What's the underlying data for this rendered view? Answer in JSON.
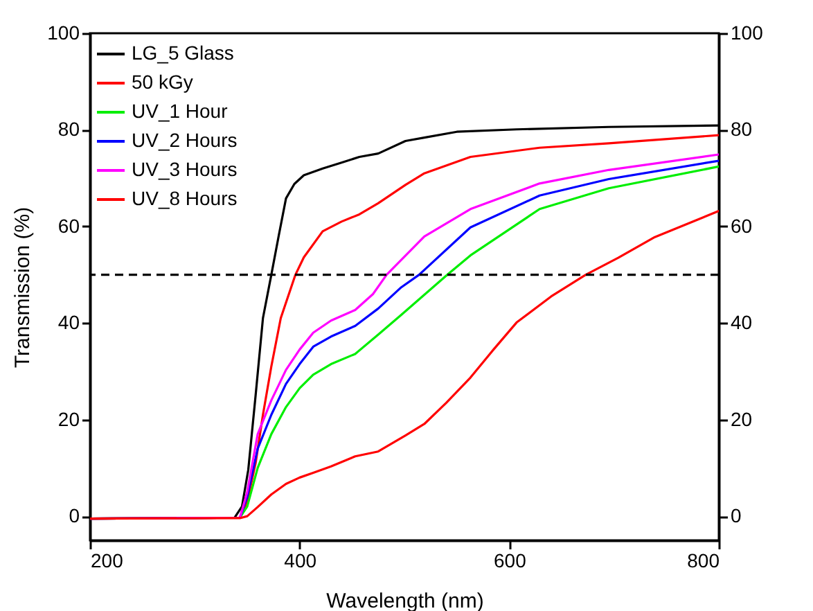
{
  "chart_data": {
    "type": "line",
    "xlabel": "Wavelength (nm)",
    "ylabel": "Transmission (%)",
    "xlim": [
      200,
      800
    ],
    "xticks": [
      200,
      400,
      600,
      800
    ],
    "ylim": [
      -5,
      100
    ],
    "yticks": [
      0,
      20,
      40,
      60,
      80,
      100
    ],
    "y2lim": [
      -5,
      100
    ],
    "y2ticks": [
      0,
      20,
      40,
      60,
      80,
      100
    ],
    "grid": false,
    "legend": "top left",
    "marker": "none",
    "line_style": "solid",
    "ref_lines": [
      {
        "axis": "y",
        "value": 50,
        "color": "#000000",
        "line_style": "dashed"
      }
    ],
    "series": [
      {
        "name": "LG_5 Glass",
        "color": "#000000",
        "x": [
          200,
          338,
          345,
          351,
          358,
          365,
          373,
          380,
          387,
          395,
          404,
          422,
          440,
          457,
          475,
          501,
          519,
          550,
          607,
          695,
          800
        ],
        "values": [
          -0.5,
          -0.3,
          2,
          9.6,
          25,
          41,
          50,
          58,
          65.8,
          68.8,
          70.6,
          72,
          73.2,
          74.4,
          75.1,
          77.7,
          78.4,
          79.6,
          80.1,
          80.6,
          80.9
        ]
      },
      {
        "name": "50 kGy",
        "color": "#ff0000",
        "x": [
          200,
          343,
          350,
          358,
          365,
          373,
          382,
          396,
          404,
          422,
          440,
          457,
          475,
          501,
          519,
          563,
          629,
          695,
          800
        ],
        "values": [
          -0.5,
          -0.3,
          3,
          11,
          21,
          31,
          41,
          50,
          53.6,
          59,
          61,
          62.5,
          64.8,
          68.6,
          71,
          74.4,
          76.3,
          77.2,
          78.9
        ]
      },
      {
        "name": "UV_1 Hour",
        "color": "#00ee00",
        "x": [
          200,
          343,
          350,
          360,
          373,
          387,
          400,
          413,
          430,
          453,
          475,
          497,
          541,
          563,
          629,
          695,
          800
        ],
        "values": [
          -0.5,
          -0.3,
          2,
          10,
          17,
          22.6,
          26.5,
          29.3,
          31.5,
          33.6,
          37.6,
          41.7,
          50,
          54,
          63.6,
          67.9,
          72.4
        ]
      },
      {
        "name": "UV_2 Hours",
        "color": "#0000ff",
        "x": [
          200,
          343,
          350,
          360,
          373,
          387,
          400,
          413,
          430,
          453,
          475,
          497,
          514,
          563,
          629,
          695,
          800
        ],
        "values": [
          -0.5,
          -0.3,
          4,
          14,
          21,
          27.4,
          31.5,
          35.1,
          37.2,
          39.4,
          43,
          47.4,
          50,
          59.8,
          66.4,
          69.8,
          73.6
        ]
      },
      {
        "name": "UV_3 Hours",
        "color": "#ff00ff",
        "x": [
          200,
          343,
          350,
          360,
          373,
          387,
          400,
          413,
          430,
          453,
          470,
          483,
          519,
          563,
          629,
          695,
          800
        ],
        "values": [
          -0.5,
          -0.3,
          5,
          17,
          24,
          30.3,
          34.5,
          38,
          40.5,
          42.7,
          46,
          50,
          57.9,
          63.6,
          68.9,
          71.7,
          74.9
        ]
      },
      {
        "name": "UV_8 Hours",
        "color": "#ff0000",
        "x": [
          200,
          343,
          350,
          360,
          373,
          387,
          400,
          413,
          430,
          453,
          475,
          501,
          519,
          540,
          563,
          585,
          607,
          640,
          673,
          704,
          739,
          800
        ],
        "values": [
          -0.5,
          -0.4,
          0,
          1.9,
          4.5,
          6.7,
          8,
          9,
          10.3,
          12.4,
          13.4,
          16.7,
          19.1,
          23.5,
          28.7,
          34.5,
          40.1,
          45.5,
          50,
          53.5,
          57.8,
          63.2
        ]
      }
    ]
  }
}
